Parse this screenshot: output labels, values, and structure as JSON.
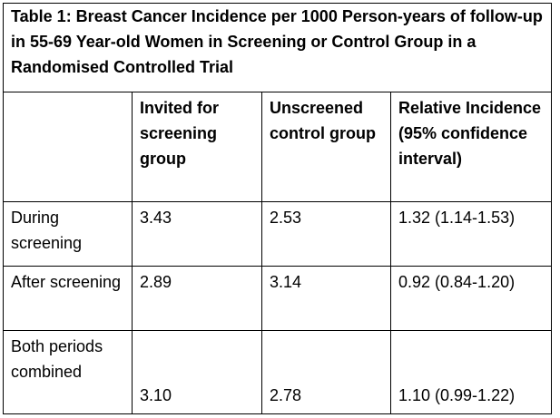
{
  "table": {
    "title": "Table 1: Breast Cancer Incidence per 1000 Person-years of follow-up in 55-69 Year-old Women in Screening or Control Group in a Randomised Controlled Trial",
    "headers": [
      "",
      "Invited for screening group",
      "Unscreened control group",
      "Relative Incidence (95% confidence interval)"
    ],
    "rows": [
      {
        "label": "During screening",
        "invited": "3.43",
        "unscreened": "2.53",
        "relative": "1.32 (1.14-1.53)"
      },
      {
        "label": "After screening",
        "invited": "2.89",
        "unscreened": "3.14",
        "relative": "0.92 (0.84-1.20)"
      },
      {
        "label": "Both periods combined",
        "invited": "3.10",
        "unscreened": "2.78",
        "relative": "1.10 (0.99-1.22)"
      }
    ]
  }
}
